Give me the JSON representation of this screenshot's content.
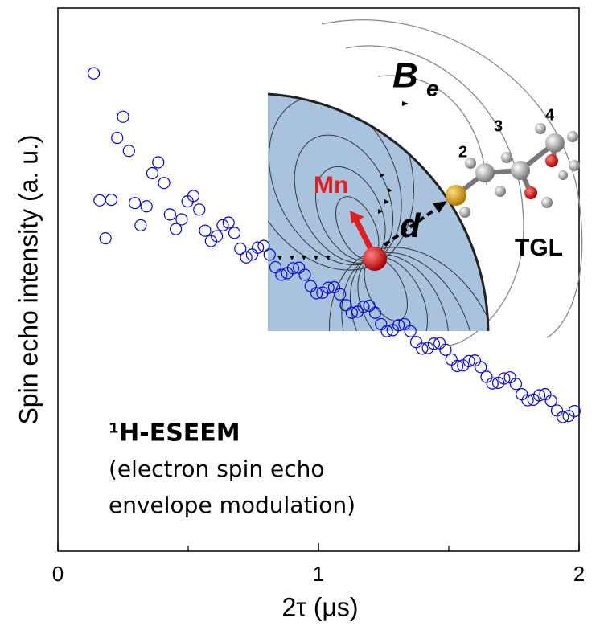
{
  "chart_data": {
    "type": "scatter",
    "xlabel": "2τ (μs)",
    "ylabel": "Spin echo intensity (a. u.)",
    "xlim": [
      0,
      2
    ],
    "xticks": [
      0,
      1,
      2
    ],
    "xminor": [
      0.5,
      1.5
    ],
    "ylim": [
      0,
      100
    ],
    "color": "#0000ee",
    "x": [
      0.1375,
      0.16,
      0.1825,
      0.205,
      0.2275,
      0.25,
      0.2725,
      0.295,
      0.3175,
      0.34,
      0.3625,
      0.385,
      0.4075,
      0.43,
      0.4525,
      0.475,
      0.4975,
      0.52,
      0.5425,
      0.565,
      0.5875,
      0.61,
      0.6325,
      0.655,
      0.6775,
      0.7,
      0.7225,
      0.745,
      0.7675,
      0.79,
      0.8125,
      0.835,
      0.8575,
      0.88,
      0.9025,
      0.925,
      0.9475,
      0.97,
      0.9925,
      1.015,
      1.0375,
      1.06,
      1.0825,
      1.105,
      1.1275,
      1.15,
      1.1725,
      1.195,
      1.2175,
      1.24,
      1.2625,
      1.285,
      1.3075,
      1.33,
      1.3525,
      1.375,
      1.3975,
      1.42,
      1.4425,
      1.465,
      1.4875,
      1.51,
      1.5325,
      1.555,
      1.5775,
      1.6,
      1.6225,
      1.645,
      1.6675,
      1.69,
      1.7125,
      1.735,
      1.7575,
      1.78,
      1.8025,
      1.825,
      1.8475,
      1.87,
      1.8925,
      1.915,
      1.9375,
      1.96,
      1.9825
    ],
    "values": [
      88,
      64.6,
      57.6,
      64.7,
      76.1,
      80.0,
      73.7,
      64.1,
      60.0,
      63.5,
      69.6,
      71.6,
      67.8,
      62.0,
      59.3,
      61.1,
      64.4,
      65.4,
      62.9,
      59.0,
      57.1,
      58.0,
      60.0,
      60.5,
      58.6,
      55.7,
      54.1,
      54.6,
      55.9,
      56.2,
      54.6,
      52.3,
      50.9,
      51.2,
      52.1,
      52.2,
      50.9,
      48.8,
      47.5,
      47.6,
      48.5,
      48.6,
      47.3,
      45.3,
      43.9,
      44.1,
      45.0,
      45.2,
      43.9,
      41.8,
      40.5,
      40.7,
      41.6,
      41.8,
      40.5,
      38.5,
      37.3,
      37.4,
      38.2,
      38.3,
      37.1,
      35.3,
      34.1,
      34.2,
      35.0,
      35.1,
      33.9,
      32.1,
      30.9,
      31.0,
      31.8,
      32.0,
      30.8,
      28.9,
      27.8,
      27.9,
      28.7,
      28.9,
      27.7,
      25.9,
      24.7,
      24.9,
      25.8
    ],
    "annotations": [
      "¹H-ESEEM",
      "(electron spin echo",
      "envelope modulation)"
    ],
    "inset_labels": {
      "field": "B",
      "field_sub": "e",
      "ion": "Mn",
      "distance": "d",
      "molecule": "TGL",
      "atoms": [
        "2",
        "3",
        "4"
      ]
    }
  }
}
